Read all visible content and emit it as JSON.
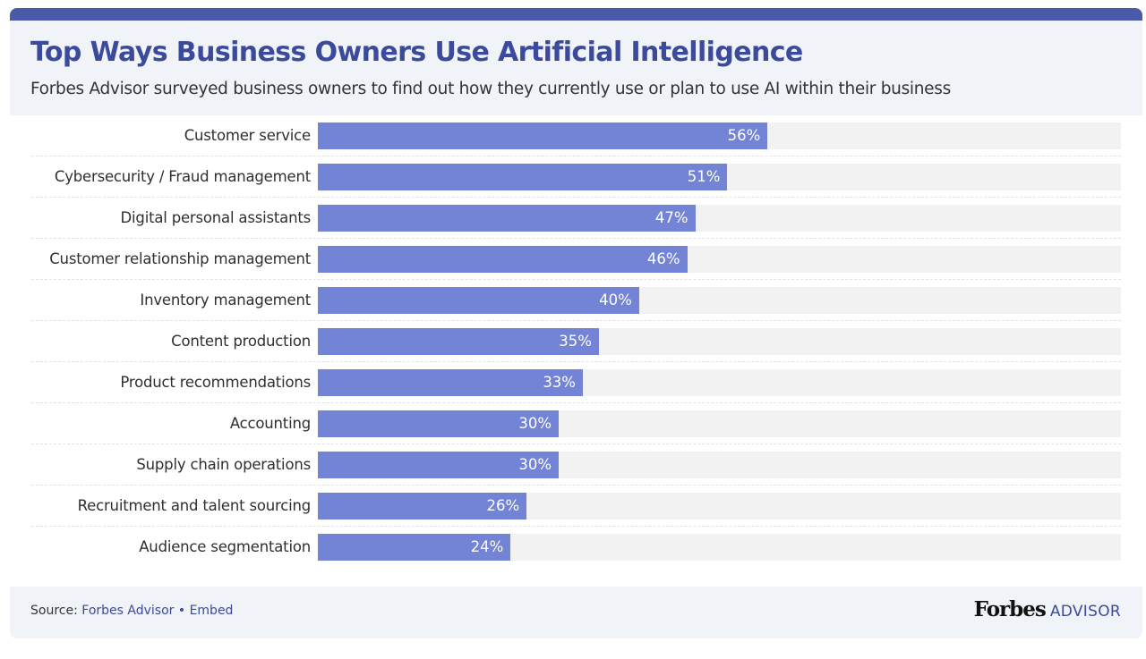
{
  "header": {
    "title": "Top Ways Business Owners Use Artificial Intelligence",
    "subtitle": "Forbes Advisor surveyed business owners to find out how they currently use or plan to use AI within their business"
  },
  "footer": {
    "source_label": "Source:",
    "source_link": "Forbes Advisor",
    "separator": "•",
    "embed_link": "Embed",
    "brand_name": "Forbes",
    "brand_suffix": "ADVISOR"
  },
  "colors": {
    "accent": "#3c4a9c",
    "bar": "#7384d6",
    "track": "#f2f2f2",
    "panel": "#f0f3f8"
  },
  "chart_data": {
    "type": "bar",
    "orientation": "horizontal",
    "title": "Top Ways Business Owners Use Artificial Intelligence",
    "xlabel": "",
    "ylabel": "",
    "xlim": [
      0,
      100
    ],
    "value_suffix": "%",
    "categories": [
      "Customer service",
      "Cybersecurity / Fraud management",
      "Digital personal assistants",
      "Customer relationship management",
      "Inventory management",
      "Content production",
      "Product recommendations",
      "Accounting",
      "Supply chain operations",
      "Recruitment and talent sourcing",
      "Audience segmentation"
    ],
    "values": [
      56,
      51,
      47,
      46,
      40,
      35,
      33,
      30,
      30,
      26,
      24
    ],
    "value_labels": [
      "56%",
      "51%",
      "47%",
      "46%",
      "40%",
      "35%",
      "33%",
      "30%",
      "30%",
      "26%",
      "24%"
    ]
  }
}
